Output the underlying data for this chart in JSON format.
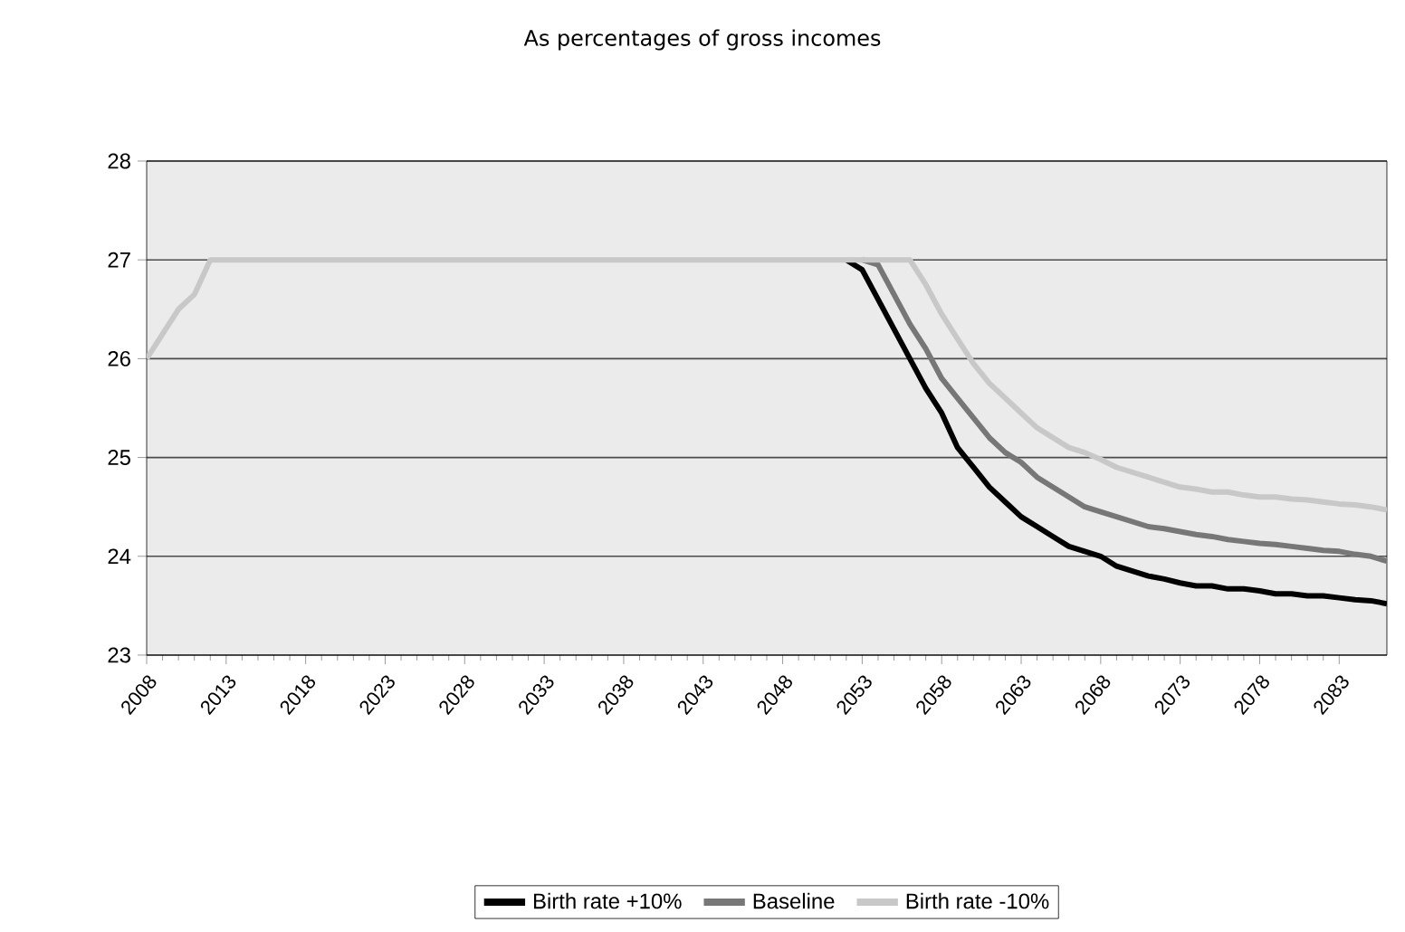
{
  "chart_data": {
    "type": "line",
    "title": "As percentages of gross incomes",
    "x": [
      2008,
      2009,
      2010,
      2011,
      2012,
      2013,
      2014,
      2015,
      2016,
      2017,
      2018,
      2019,
      2020,
      2021,
      2022,
      2023,
      2024,
      2025,
      2026,
      2027,
      2028,
      2029,
      2030,
      2031,
      2032,
      2033,
      2034,
      2035,
      2036,
      2037,
      2038,
      2039,
      2040,
      2041,
      2042,
      2043,
      2044,
      2045,
      2046,
      2047,
      2048,
      2049,
      2050,
      2051,
      2052,
      2053,
      2054,
      2055,
      2056,
      2057,
      2058,
      2059,
      2060,
      2061,
      2062,
      2063,
      2064,
      2065,
      2066,
      2067,
      2068,
      2069,
      2070,
      2071,
      2072,
      2073,
      2074,
      2075,
      2076,
      2077,
      2078,
      2079,
      2080,
      2081,
      2082,
      2083,
      2084,
      2085,
      2086
    ],
    "series": [
      {
        "name": "Birth rate +10%",
        "color": "#000000",
        "values": [
          null,
          null,
          null,
          null,
          null,
          null,
          null,
          null,
          null,
          null,
          null,
          null,
          null,
          null,
          null,
          null,
          null,
          null,
          null,
          null,
          null,
          null,
          null,
          null,
          null,
          null,
          null,
          null,
          null,
          null,
          null,
          null,
          null,
          null,
          null,
          null,
          null,
          null,
          null,
          null,
          null,
          null,
          null,
          null,
          27,
          26.9,
          26.6,
          26.3,
          26.0,
          25.7,
          25.45,
          25.1,
          24.9,
          24.7,
          24.55,
          24.4,
          24.3,
          24.2,
          24.1,
          24.05,
          24.0,
          23.9,
          23.85,
          23.8,
          23.77,
          23.73,
          23.7,
          23.7,
          23.67,
          23.67,
          23.65,
          23.62,
          23.62,
          23.6,
          23.6,
          23.58,
          23.56,
          23.55,
          23.52
        ]
      },
      {
        "name": "Baseline",
        "color": "#777777",
        "values": [
          null,
          null,
          null,
          null,
          null,
          null,
          null,
          null,
          null,
          null,
          null,
          null,
          null,
          null,
          null,
          null,
          null,
          null,
          null,
          null,
          null,
          null,
          null,
          null,
          null,
          null,
          null,
          null,
          null,
          null,
          null,
          null,
          null,
          null,
          null,
          null,
          null,
          null,
          null,
          null,
          null,
          null,
          null,
          null,
          null,
          27,
          26.95,
          26.65,
          26.35,
          26.1,
          25.8,
          25.6,
          25.4,
          25.2,
          25.05,
          24.95,
          24.8,
          24.7,
          24.6,
          24.5,
          24.45,
          24.4,
          24.35,
          24.3,
          24.28,
          24.25,
          24.22,
          24.2,
          24.17,
          24.15,
          24.13,
          24.12,
          24.1,
          24.08,
          24.06,
          24.05,
          24.02,
          24.0,
          23.95
        ]
      },
      {
        "name": "Birth rate -10%",
        "color": "#c8c8c8",
        "values": [
          26,
          26.25,
          26.5,
          26.65,
          27,
          27,
          27,
          27,
          27,
          27,
          27,
          27,
          27,
          27,
          27,
          27,
          27,
          27,
          27,
          27,
          27,
          27,
          27,
          27,
          27,
          27,
          27,
          27,
          27,
          27,
          27,
          27,
          27,
          27,
          27,
          27,
          27,
          27,
          27,
          27,
          27,
          27,
          27,
          27,
          27,
          27,
          27,
          27,
          27,
          26.75,
          26.45,
          26.2,
          25.95,
          25.75,
          25.6,
          25.45,
          25.3,
          25.2,
          25.1,
          25.05,
          24.98,
          24.9,
          24.85,
          24.8,
          24.75,
          24.7,
          24.68,
          24.65,
          24.65,
          24.62,
          24.6,
          24.6,
          24.58,
          24.57,
          24.55,
          24.53,
          24.52,
          24.5,
          24.47
        ]
      }
    ],
    "xlim": [
      2008,
      2086
    ],
    "xticks": [
      2008,
      2013,
      2018,
      2023,
      2028,
      2033,
      2038,
      2043,
      2048,
      2053,
      2058,
      2063,
      2068,
      2073,
      2078,
      2083
    ],
    "ylim": [
      23,
      28
    ],
    "yticks": [
      23,
      24,
      25,
      26,
      27,
      28
    ],
    "grid": "y",
    "legend": "bottom",
    "marker": "none",
    "line_style": "solid"
  }
}
